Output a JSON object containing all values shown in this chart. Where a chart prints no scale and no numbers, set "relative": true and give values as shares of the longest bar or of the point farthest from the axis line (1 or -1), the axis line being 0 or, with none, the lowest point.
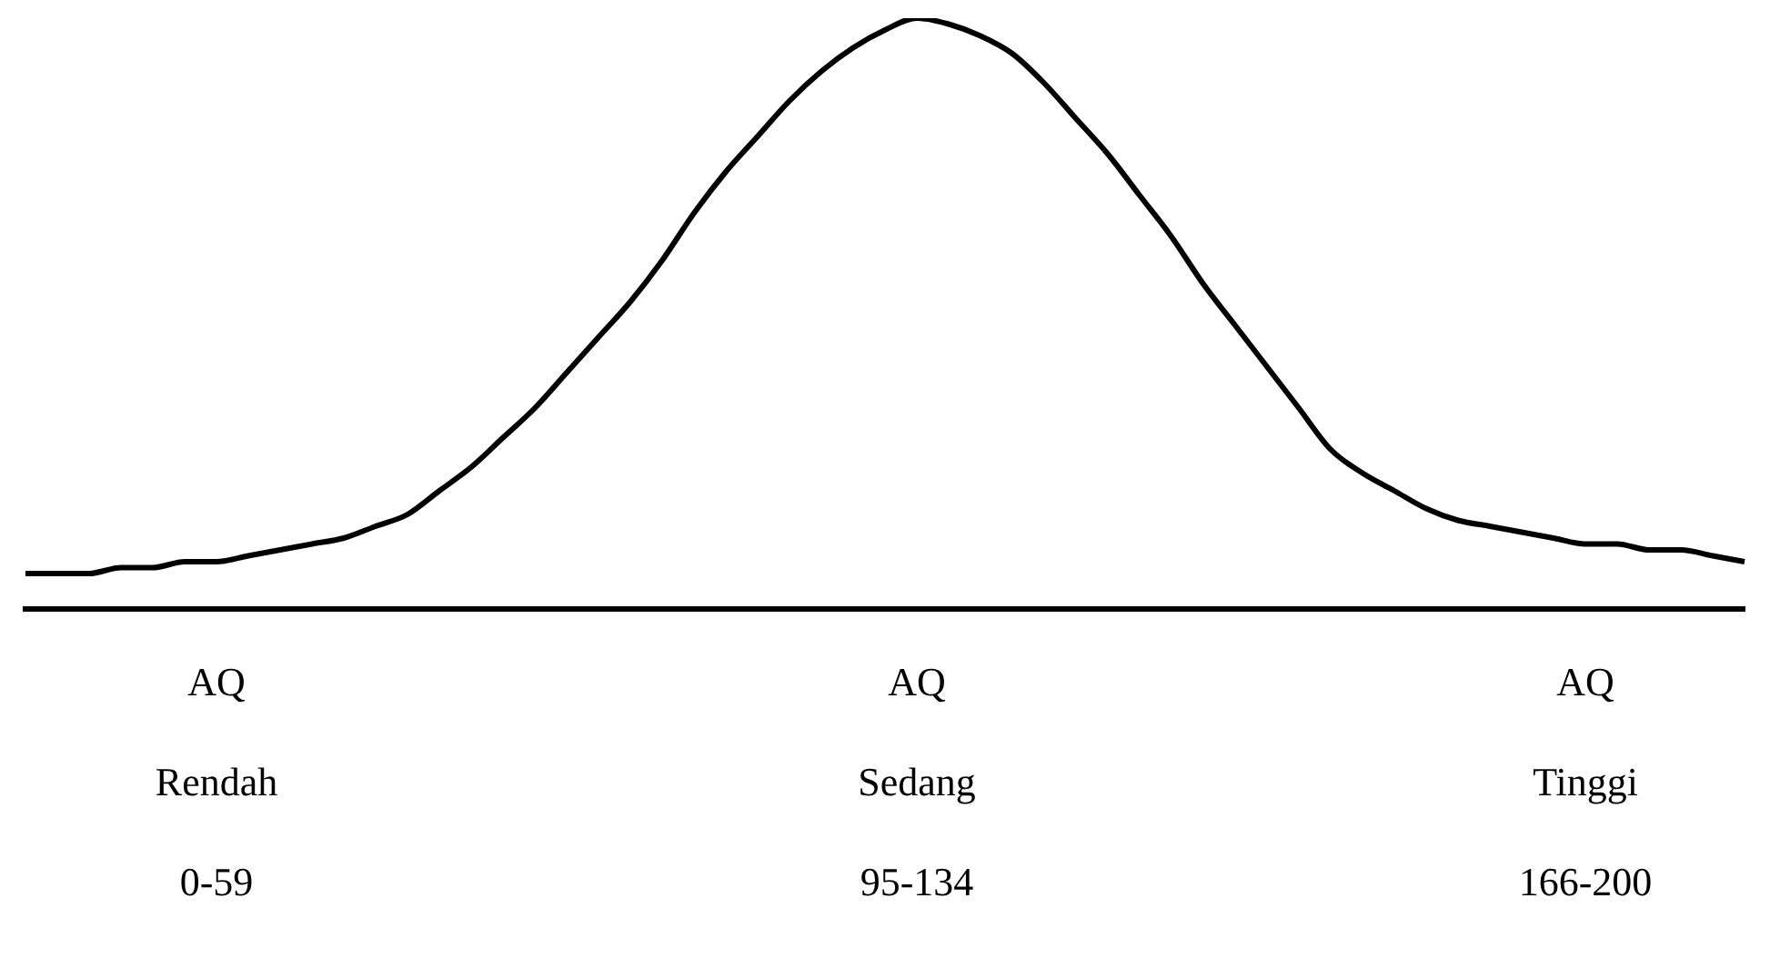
{
  "chart_data": {
    "type": "line",
    "relative": true,
    "marker": "none",
    "grid": false,
    "legend": false,
    "line_style": "solid",
    "categories": [
      null,
      null,
      null,
      null,
      null,
      null,
      "AQ\nRendah\n0-59",
      null,
      null,
      null,
      null,
      null,
      null,
      null,
      null,
      null,
      null,
      null,
      null,
      null,
      null,
      null,
      null,
      null,
      null,
      null,
      null,
      null,
      "AQ\nSedang\n95-134",
      null,
      null,
      null,
      null,
      null,
      null,
      null,
      null,
      null,
      null,
      null,
      null,
      null,
      null,
      null,
      null,
      null,
      null,
      null,
      null,
      "AQ\nTinggi\n166-200",
      null,
      null,
      null,
      null,
      null
    ],
    "series": [
      {
        "color": "#000000",
        "values": [
          0.06,
          0.06,
          0.06,
          0.07,
          0.07,
          0.08,
          0.08,
          0.09,
          0.1,
          0.11,
          0.12,
          0.14,
          0.16,
          0.2,
          0.24,
          0.29,
          0.34,
          0.4,
          0.46,
          0.52,
          0.59,
          0.67,
          0.74,
          0.8,
          0.86,
          0.91,
          0.95,
          0.98,
          1,
          0.99,
          0.97,
          0.94,
          0.89,
          0.83,
          0.77,
          0.7,
          0.63,
          0.55,
          0.48,
          0.41,
          0.34,
          0.27,
          0.23,
          0.2,
          0.17,
          0.15,
          0.14,
          0.13,
          0.12,
          0.11,
          0.11,
          0.1,
          0.1,
          0.09,
          0.08
        ]
      }
    ]
  }
}
